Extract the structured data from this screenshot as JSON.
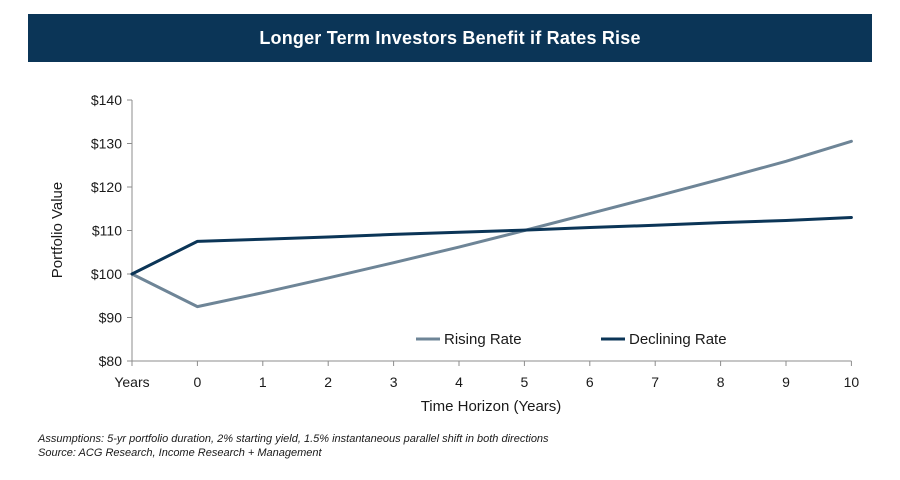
{
  "header": {
    "title": "Longer Term Investors Benefit if Rates Rise"
  },
  "notes": {
    "assumptions": "Assumptions: 5-yr portfolio duration, 2% starting yield, 1.5% instantaneous parallel shift in both directions",
    "source": "Source: ACG Research, Income Research + Management"
  },
  "colors": {
    "header_bg": "#0b3557",
    "rising": "#6e8597",
    "declining": "#0b3557",
    "axis": "#8c8c8c"
  },
  "chart_data": {
    "type": "line",
    "title": "Longer Term Investors Benefit if Rates Rise",
    "xlabel": "Time Horizon (Years)",
    "ylabel": "Portfolio Value",
    "categories": [
      "Years",
      "0",
      "1",
      "2",
      "3",
      "4",
      "5",
      "6",
      "7",
      "8",
      "9",
      "10"
    ],
    "ylim": [
      80,
      140
    ],
    "yticks": [
      80,
      90,
      100,
      110,
      120,
      130,
      140
    ],
    "ytick_labels": [
      "$80",
      "$90",
      "$100",
      "$110",
      "$120",
      "$130",
      "$140"
    ],
    "grid": false,
    "legend_position": "bottom-right",
    "series": [
      {
        "name": "Rising Rate",
        "color": "#6e8597",
        "values": [
          100,
          92.5,
          95.7,
          99.1,
          102.6,
          106.2,
          110.0,
          113.9,
          117.8,
          121.8,
          125.9,
          130.5
        ]
      },
      {
        "name": "Declining Rate",
        "color": "#0b3557",
        "values": [
          100,
          107.5,
          108.0,
          108.5,
          109.1,
          109.6,
          110.1,
          110.7,
          111.2,
          111.8,
          112.3,
          113.0
        ]
      }
    ]
  }
}
